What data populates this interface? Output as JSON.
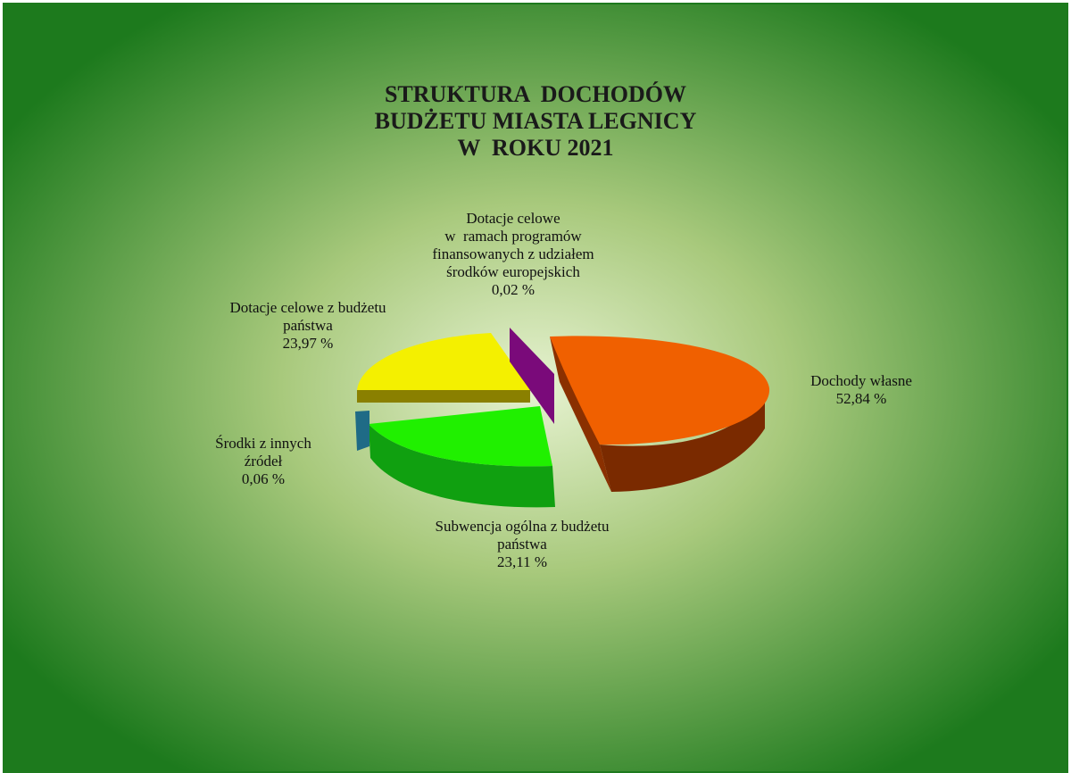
{
  "chart_data": {
    "type": "pie",
    "title_lines": [
      "STRUKTURA  DOCHODÓW",
      "BUDŻETU MIASTA LEGNICY",
      "W  ROKU 2021"
    ],
    "slices": [
      {
        "name_lines": [
          "Dochody własne"
        ],
        "value_label": "52,84 %",
        "value": 52.84,
        "color": "#f06000",
        "side_color": "#7a2a00"
      },
      {
        "name_lines": [
          "Subwencja ogólna z budżetu",
          "państwa"
        ],
        "value_label": "23,11 %",
        "value": 23.11,
        "color": "#20f000",
        "side_color": "#0f8a0f"
      },
      {
        "name_lines": [
          "Środki z innych",
          "źródeł"
        ],
        "value_label": "0,06 %",
        "value": 0.06,
        "color": "#1f6b86",
        "side_color": "#124a5e"
      },
      {
        "name_lines": [
          "Dotacje celowe z budżetu",
          "państwa"
        ],
        "value_label": "23,97 %",
        "value": 23.97,
        "color": "#f4f000",
        "side_color": "#8a8000"
      },
      {
        "name_lines": [
          "Dotacje celowe",
          "w  ramach programów",
          "finansowanych z udziałem",
          "środków europejskich"
        ],
        "value_label": "0,02 %",
        "value": 0.02,
        "color": "#7a0a7a",
        "side_color": "#5a065a"
      }
    ],
    "legend": "none",
    "background": {
      "outer": "#1d7a1d",
      "inner": "#e4f0cc"
    }
  }
}
